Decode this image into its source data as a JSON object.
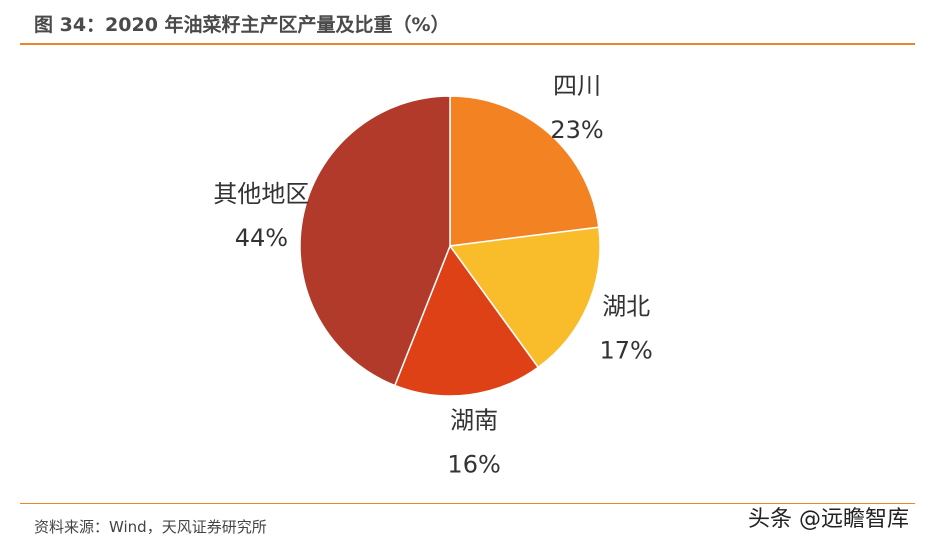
{
  "title": "图 34：2020 年油菜籽主产区产量及比重（%）",
  "source": "资料来源：Wind，天风证券研究所",
  "watermark": "头条 @远瞻智库",
  "chart_data": {
    "type": "pie",
    "slices": [
      {
        "name": "四川",
        "value": 23,
        "label": "23%",
        "color": "#F28222"
      },
      {
        "name": "湖北",
        "value": 17,
        "label": "17%",
        "color": "#F9BD2B"
      },
      {
        "name": "湖南",
        "value": 16,
        "label": "16%",
        "color": "#DF4117"
      },
      {
        "name": "其他地区",
        "value": 44,
        "label": "44%",
        "color": "#B23A2A"
      }
    ]
  }
}
